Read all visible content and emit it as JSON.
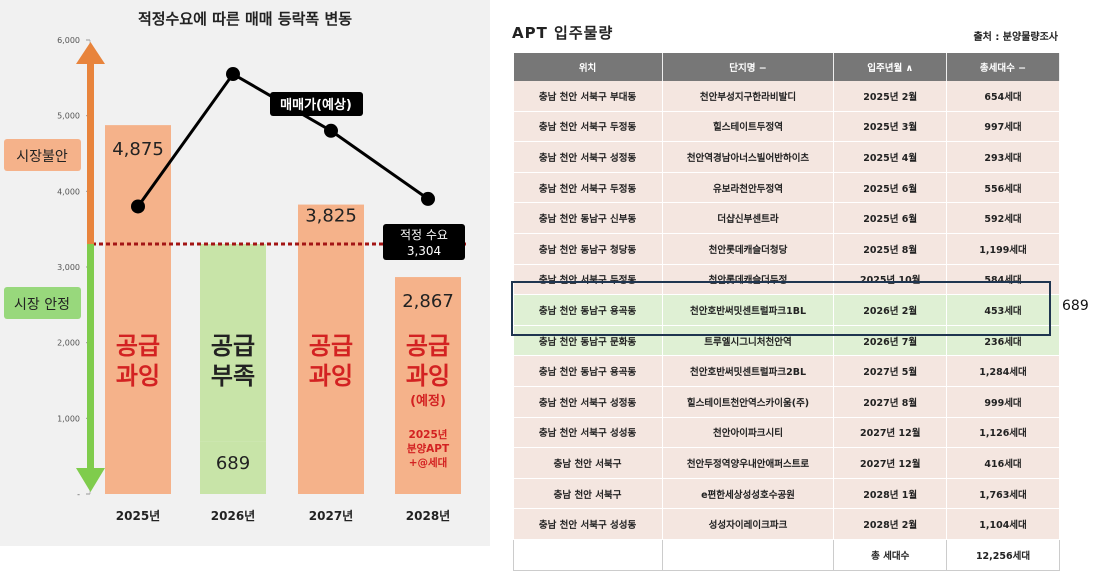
{
  "chart_data": {
    "type": "bar",
    "title": "적정수요에 따른 매매 등락폭 변동",
    "categories": [
      "2025년",
      "2026년",
      "2027년",
      "2028년"
    ],
    "values": [
      4875,
      689,
      3825,
      2867
    ],
    "value_labels": [
      "4,875",
      "689",
      "3,825",
      "2,867"
    ],
    "bar_colors": [
      "#f5b28a",
      "#c8e4a8",
      "#f5b28a",
      "#f5b28a"
    ],
    "bar_texts": [
      {
        "line1": "공급",
        "line2": "과잉",
        "color": "#d32222"
      },
      {
        "line1": "공급",
        "line2": "부족",
        "color": "#222222"
      },
      {
        "line1": "공급",
        "line2": "과잉",
        "color": "#d32222"
      },
      {
        "line1": "공급",
        "line2": "과잉",
        "color": "#d32222"
      }
    ],
    "bar_notes": [
      "",
      "",
      "",
      "(예정)"
    ],
    "bar_extra": [
      "",
      "",
      "",
      "2025년\n분양APT\n+@세대"
    ],
    "gap_band": {
      "category": "2026년",
      "from": 689,
      "to": 3304,
      "color": "#c8e4a8"
    },
    "line": {
      "name": "매매가(예상)",
      "values": [
        3800,
        5550,
        4800,
        3900
      ]
    },
    "reference": {
      "value": 3304,
      "label": "적정 수요",
      "value_label": "3,304",
      "color": "#a31515"
    },
    "ylim": [
      0,
      6000
    ],
    "yticks": [
      6000,
      5000,
      4000,
      3000,
      2000,
      1000,
      0
    ],
    "ytick_labels": [
      "6,000",
      "5,000",
      "4,000",
      "3,000",
      "2,000",
      "1,000",
      "-"
    ],
    "side_labels": {
      "unstable": "시장불안",
      "stable": "시장 안정"
    },
    "arrow_colors": {
      "up": "#e8843c",
      "down": "#7fcc4c"
    }
  },
  "table": {
    "title": "APT 입주물량",
    "source": "출처 : 분양물량조사",
    "headers": [
      "위치",
      "단지명 −",
      "입주년월 ∧",
      "총세대수 −"
    ],
    "rows": [
      {
        "loc": "충남 천안 서북구 부대동",
        "name": "천안부성지구한라비발디",
        "date": "2025년 2월",
        "units": "654세대",
        "hl": false
      },
      {
        "loc": "충남 천안 서북구 두정동",
        "name": "힐스테이트두정역",
        "date": "2025년 3월",
        "units": "997세대",
        "hl": false
      },
      {
        "loc": "충남 천안 서북구 성정동",
        "name": "천안역경남아너스빌어반하이츠",
        "date": "2025년 4월",
        "units": "293세대",
        "hl": false
      },
      {
        "loc": "충남 천안 서북구 두정동",
        "name": "유보라천안두정역",
        "date": "2025년 6월",
        "units": "556세대",
        "hl": false
      },
      {
        "loc": "충남 천안 동남구 신부동",
        "name": "더샵신부센트라",
        "date": "2025년 6월",
        "units": "592세대",
        "hl": false
      },
      {
        "loc": "충남 천안 동남구 청당동",
        "name": "천안롯데캐슬더청당",
        "date": "2025년 8월",
        "units": "1,199세대",
        "hl": false
      },
      {
        "loc": "충남 천안 서북구 두정동",
        "name": "천안롯데캐슬더두정",
        "date": "2025년 10월",
        "units": "584세대",
        "hl": false
      },
      {
        "loc": "충남 천안 동남구 용곡동",
        "name": "천안호반써밋센트럴파크1BL",
        "date": "2026년 2월",
        "units": "453세대",
        "hl": true
      },
      {
        "loc": "충남 천안 동남구 문화동",
        "name": "트루엘시그니처천안역",
        "date": "2026년 7월",
        "units": "236세대",
        "hl": true
      },
      {
        "loc": "충남 천안 동남구 용곡동",
        "name": "천안호반써밋센트럴파크2BL",
        "date": "2027년 5월",
        "units": "1,284세대",
        "hl": false
      },
      {
        "loc": "충남 천안 서북구 성정동",
        "name": "힐스테이트천안역스카이움(주)",
        "date": "2027년 8월",
        "units": "999세대",
        "hl": false
      },
      {
        "loc": "충남 천안 서북구 성성동",
        "name": "천안아이파크시티",
        "date": "2027년 12월",
        "units": "1,126세대",
        "hl": false
      },
      {
        "loc": "충남 천안 서북구",
        "name": "천안두정역양우내안애퍼스트로",
        "date": "2027년 12월",
        "units": "416세대",
        "hl": false
      },
      {
        "loc": "충남 천안 서북구",
        "name": "e편한세상성성호수공원",
        "date": "2028년 1월",
        "units": "1,763세대",
        "hl": false
      },
      {
        "loc": "충남 천안 서북구 성성동",
        "name": "성성자이레이크파크",
        "date": "2028년 2월",
        "units": "1,104세대",
        "hl": false
      }
    ],
    "total_label": "총 세대수",
    "total_value": "12,256세대",
    "highlight_label": "689",
    "row_colors": {
      "normal": "#f4e6e0",
      "highlight": "#dff0d4"
    }
  }
}
